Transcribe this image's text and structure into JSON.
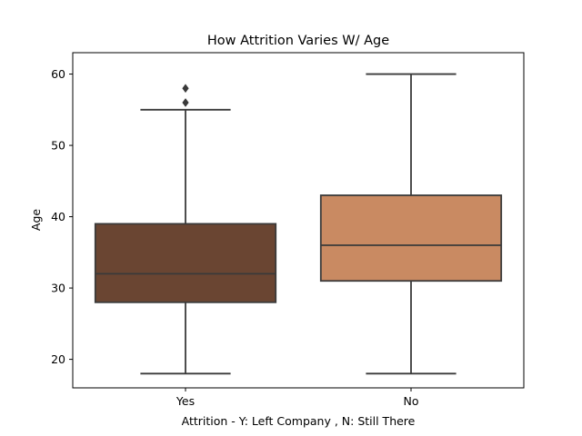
{
  "chart_data": {
    "type": "box",
    "title": "How Attrition Varies W/ Age",
    "xlabel": "Attrition - Y: Left Company , N: Still There",
    "ylabel": "Age",
    "ylim": [
      16,
      63
    ],
    "yticks": [
      20,
      30,
      40,
      50,
      60
    ],
    "grid": false,
    "categories": [
      "Yes",
      "No"
    ],
    "boxes": [
      {
        "category": "Yes",
        "color": "#6a4532",
        "whisker_low": 18,
        "q1": 28,
        "median": 32,
        "q3": 39,
        "whisker_high": 55,
        "outliers": [
          56,
          58
        ]
      },
      {
        "category": "No",
        "color": "#c98a62",
        "whisker_low": 18,
        "q1": 31,
        "median": 36,
        "q3": 43,
        "whisker_high": 60,
        "outliers": []
      }
    ]
  }
}
